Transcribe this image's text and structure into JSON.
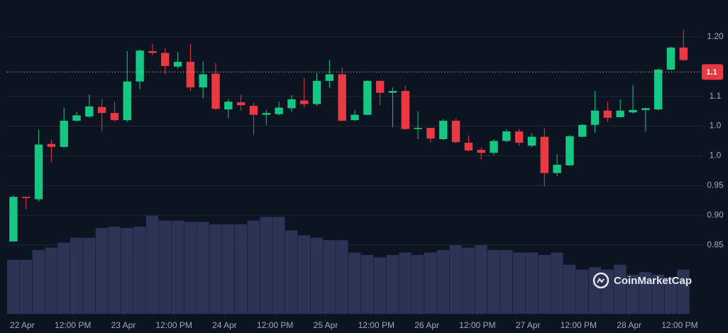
{
  "chart_data": {
    "type": "candlestick",
    "x": [
      0,
      1,
      2,
      3,
      4,
      5,
      6,
      7,
      8,
      9,
      10,
      11,
      12,
      13,
      14,
      15,
      16,
      17,
      18,
      19,
      20,
      21,
      22,
      23,
      24,
      25,
      26,
      27,
      28,
      29,
      30,
      31,
      32,
      33,
      34,
      35,
      36,
      37,
      38,
      39,
      40,
      41,
      42,
      43,
      44,
      45,
      46,
      47,
      48,
      49,
      50,
      51,
      52,
      53
    ],
    "open": [
      0.856,
      0.931,
      0.927,
      1.02,
      1.015,
      1.059,
      1.066,
      1.082,
      1.072,
      1.06,
      1.125,
      1.176,
      1.173,
      1.15,
      1.158,
      1.115,
      1.138,
      1.078,
      1.09,
      1.084,
      1.069,
      1.07,
      1.08,
      1.093,
      1.087,
      1.126,
      1.137,
      1.06,
      1.069,
      1.126,
      1.106,
      1.109,
      1.045,
      1.047,
      1.028,
      1.059,
      1.022,
      1.01,
      1.005,
      1.025,
      1.041,
      1.017,
      1.032,
      0.971,
      0.984,
      1.032,
      1.052,
      1.076,
      1.065,
      1.073,
      1.077,
      1.078,
      1.145,
      1.182
    ],
    "high": [
      0.933,
      0.931,
      1.044,
      1.027,
      1.081,
      1.074,
      1.103,
      1.095,
      1.091,
      1.176,
      1.179,
      1.188,
      1.181,
      1.174,
      1.188,
      1.159,
      1.156,
      1.095,
      1.103,
      1.089,
      1.077,
      1.091,
      1.102,
      1.131,
      1.139,
      1.161,
      1.149,
      1.077,
      1.127,
      1.127,
      1.115,
      1.118,
      1.075,
      1.047,
      1.062,
      1.062,
      1.034,
      1.014,
      1.028,
      1.045,
      1.045,
      1.038,
      1.046,
      1.003,
      1.035,
      1.053,
      1.109,
      1.091,
      1.095,
      1.119,
      1.081,
      1.147,
      1.184,
      1.212
    ],
    "low": [
      0.856,
      0.91,
      0.923,
      0.989,
      1.013,
      1.057,
      1.064,
      1.041,
      1.058,
      1.057,
      1.112,
      1.169,
      1.137,
      1.147,
      1.109,
      1.097,
      1.077,
      1.063,
      1.076,
      1.035,
      1.052,
      1.068,
      1.074,
      1.081,
      1.084,
      1.114,
      1.058,
      1.058,
      1.068,
      1.085,
      1.048,
      1.044,
      1.028,
      1.022,
      1.026,
      1.021,
      1.007,
      0.994,
      1.001,
      1.023,
      1.017,
      1.014,
      0.949,
      0.966,
      0.983,
      1.031,
      1.039,
      1.057,
      1.064,
      1.071,
      1.041,
      1.076,
      1.144,
      1.159
    ],
    "close": [
      0.931,
      0.929,
      1.019,
      1.015,
      1.059,
      1.068,
      1.083,
      1.072,
      1.06,
      1.125,
      1.177,
      1.173,
      1.151,
      1.158,
      1.115,
      1.137,
      1.079,
      1.091,
      1.085,
      1.069,
      1.072,
      1.081,
      1.095,
      1.087,
      1.126,
      1.137,
      1.059,
      1.069,
      1.126,
      1.106,
      1.109,
      1.045,
      1.047,
      1.029,
      1.059,
      1.023,
      1.009,
      1.005,
      1.025,
      1.041,
      1.022,
      1.032,
      0.971,
      0.985,
      1.033,
      1.052,
      1.076,
      1.064,
      1.076,
      1.077,
      1.08,
      1.145,
      1.182,
      1.161
    ],
    "volume": [
      44,
      44,
      52,
      54,
      58,
      62,
      62,
      70,
      71,
      70,
      71,
      80,
      76,
      76,
      75,
      75,
      73,
      73,
      73,
      76,
      79,
      79,
      68,
      64,
      62,
      60,
      60,
      50,
      48,
      46,
      48,
      50,
      48,
      50,
      52,
      56,
      54,
      56,
      52,
      52,
      50,
      50,
      48,
      50,
      40,
      36,
      38,
      36,
      40,
      32,
      34,
      32,
      30,
      36
    ],
    "volume_lim": [
      0,
      250
    ],
    "up_color": "#16c784",
    "down_color": "#ea3943",
    "volume_color": "#2b3454",
    "xlim": [
      -0.5,
      54.5
    ],
    "xticks": [
      {
        "value": 0.7,
        "label": "22 Apr"
      },
      {
        "value": 4.7,
        "label": "12:00 PM"
      },
      {
        "value": 8.7,
        "label": "23 Apr"
      },
      {
        "value": 12.7,
        "label": "12:00 PM"
      },
      {
        "value": 16.7,
        "label": "24 Apr"
      },
      {
        "value": 20.7,
        "label": "12:00 PM"
      },
      {
        "value": 24.7,
        "label": "25 Apr"
      },
      {
        "value": 28.7,
        "label": "12:00 PM"
      },
      {
        "value": 32.7,
        "label": "26 Apr"
      },
      {
        "value": 36.7,
        "label": "12:00 PM"
      },
      {
        "value": 40.7,
        "label": "27 Apr"
      },
      {
        "value": 44.7,
        "label": "12:00 PM"
      },
      {
        "value": 48.7,
        "label": "28 Apr"
      },
      {
        "value": 52.7,
        "label": "12:00 PM"
      }
    ],
    "ylim": [
      0.8,
      1.25
    ],
    "yticks": [
      {
        "value": 1.2,
        "label": "1.20"
      },
      {
        "value": 1.1,
        "label": "1.1"
      },
      {
        "value": 1.05,
        "label": "1.0"
      },
      {
        "value": 1.0,
        "label": "1.0"
      },
      0.95,
      {
        "value": 0.9,
        "label": "0.90"
      },
      0.85
    ],
    "grid": true,
    "current_price": {
      "value": 1.141,
      "label": "1.1"
    },
    "watermark": "CoinMarketCap"
  }
}
